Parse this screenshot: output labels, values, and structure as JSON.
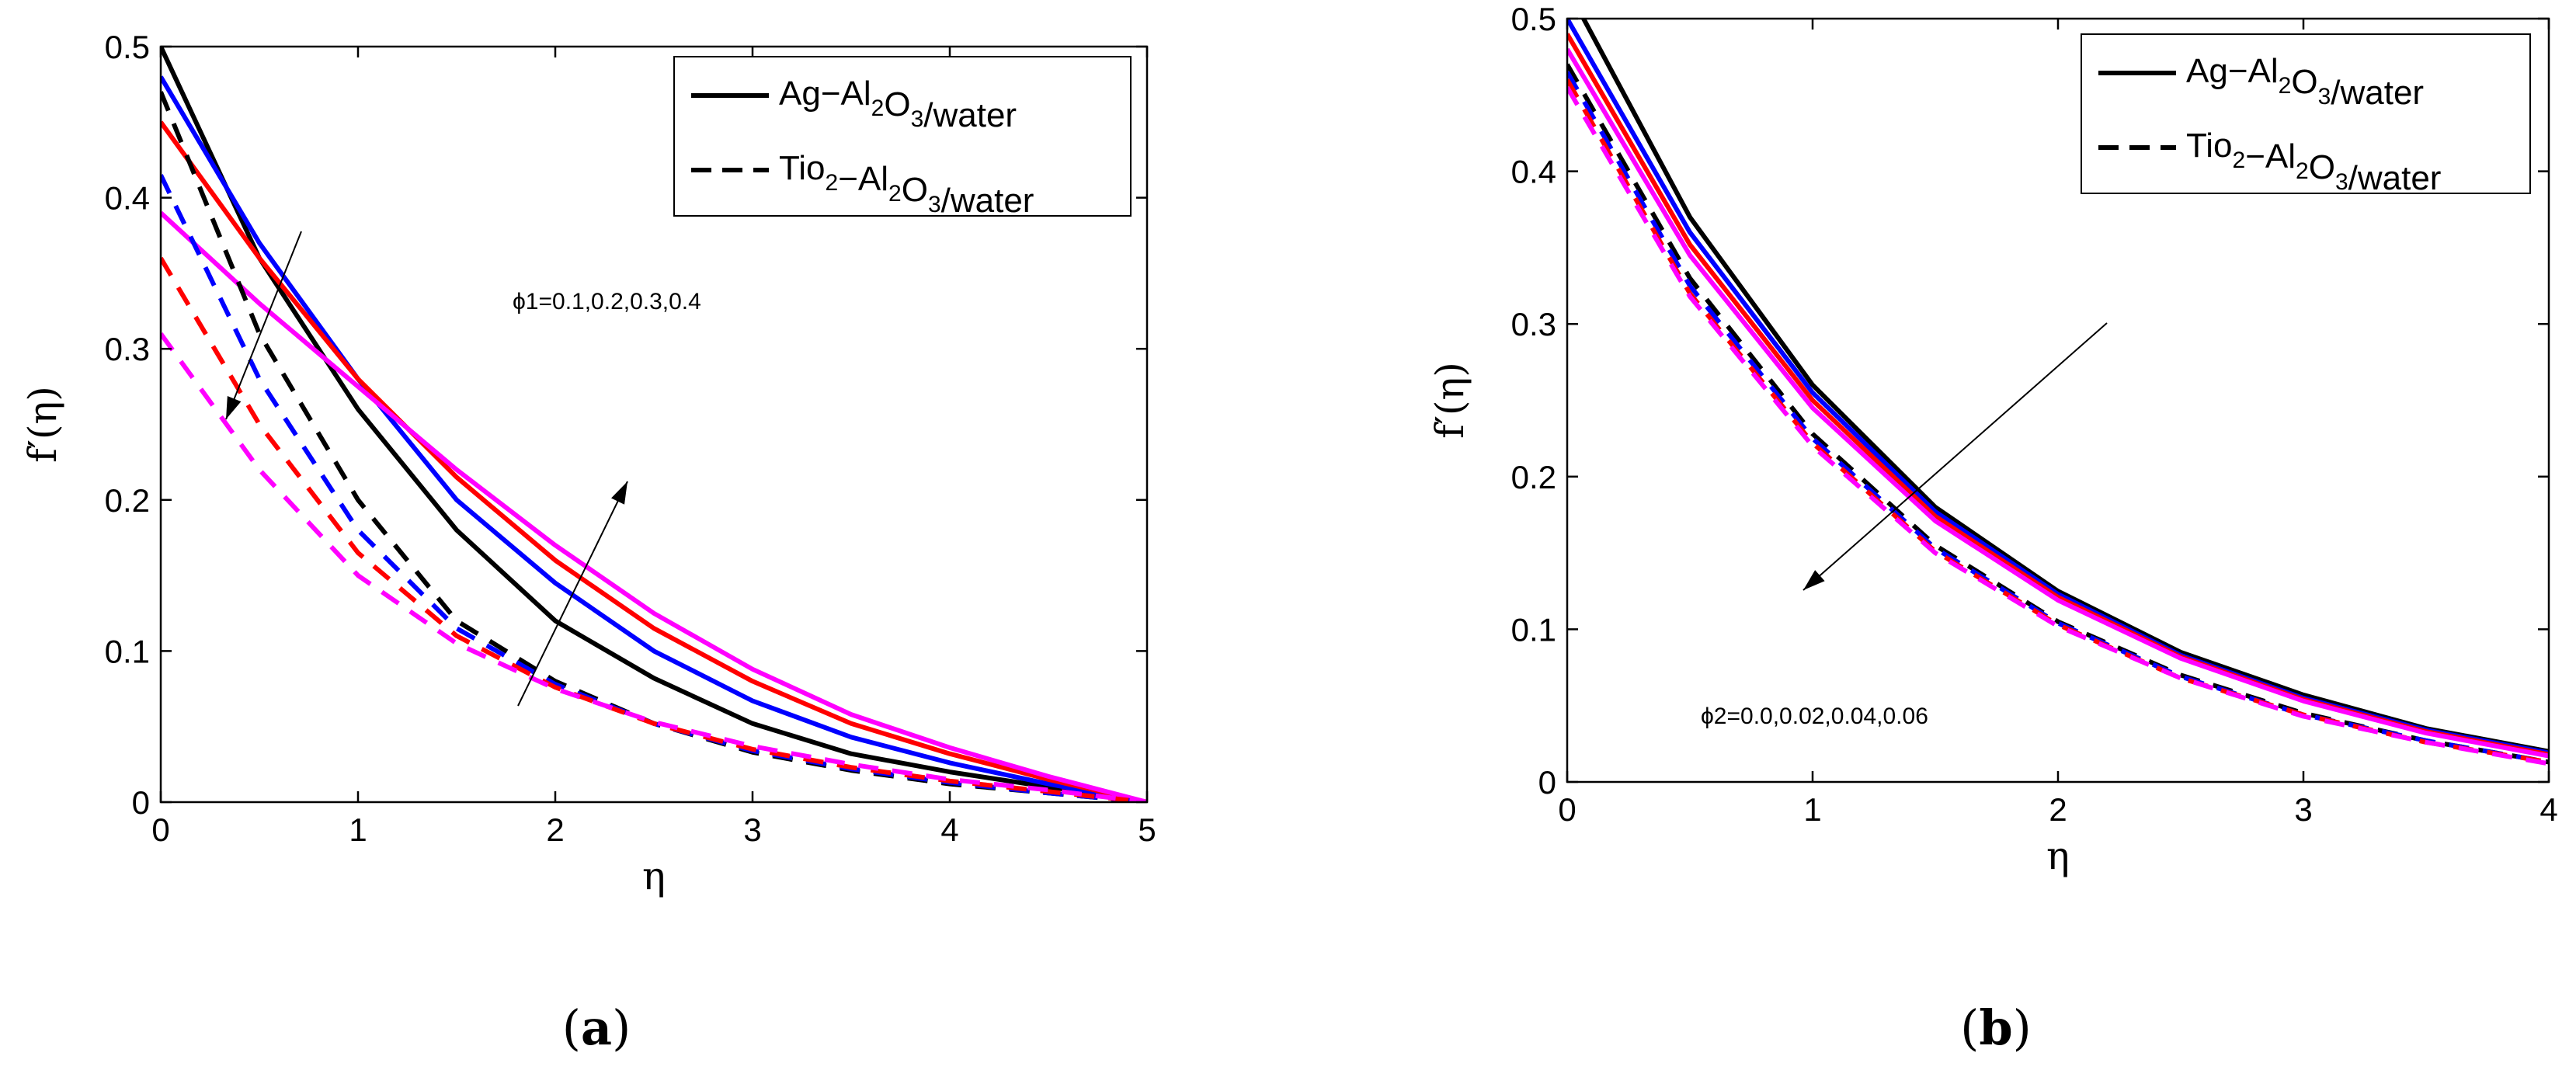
{
  "chart_data": [
    {
      "type": "line",
      "panel_label": "(a)",
      "xlabel": "η",
      "ylabel": "f′(η)",
      "xlim": [
        0,
        5
      ],
      "ylim": [
        0,
        0.5
      ],
      "xticks": [
        "0",
        "1",
        "2",
        "3",
        "4",
        "5"
      ],
      "yticks": [
        "0",
        "0.1",
        "0.2",
        "0.3",
        "0.4",
        "0.5"
      ],
      "legend": {
        "placement": "top-right",
        "entries": [
          {
            "style": "solid",
            "text": "Ag−Al",
            "sub1": "2",
            "mid": "O",
            "sub2": "3",
            "tail": "/water"
          },
          {
            "style": "dashed",
            "text": "Tio",
            "sub0": "2",
            "mid0": "−Al",
            "sub1": "2",
            "mid": "O",
            "sub2": "3",
            "tail": "/water"
          }
        ]
      },
      "annotations": [
        {
          "text": "ϕ1=0.1,0.2,0.3,0.4"
        }
      ],
      "series": [
        {
          "name": "Ag−Al2O3/water ϕ1=0.1",
          "color": "#000000",
          "style": "solid",
          "x": [
            0,
            0.5,
            1,
            1.5,
            2,
            2.5,
            3,
            3.5,
            4,
            4.5,
            5
          ],
          "y": [
            0.5,
            0.36,
            0.26,
            0.18,
            0.12,
            0.082,
            0.052,
            0.032,
            0.02,
            0.01,
            0
          ]
        },
        {
          "name": "Ag−Al2O3/water ϕ1=0.2",
          "color": "#0000ff",
          "style": "solid",
          "x": [
            0,
            0.5,
            1,
            1.5,
            2,
            2.5,
            3,
            3.5,
            4,
            4.5,
            5
          ],
          "y": [
            0.48,
            0.37,
            0.28,
            0.2,
            0.145,
            0.1,
            0.067,
            0.043,
            0.026,
            0.012,
            0
          ]
        },
        {
          "name": "Ag−Al2O3/water ϕ1=0.3",
          "color": "#ff0000",
          "style": "solid",
          "x": [
            0,
            0.5,
            1,
            1.5,
            2,
            2.5,
            3,
            3.5,
            4,
            4.5,
            5
          ],
          "y": [
            0.45,
            0.36,
            0.28,
            0.215,
            0.16,
            0.115,
            0.08,
            0.052,
            0.032,
            0.015,
            0
          ]
        },
        {
          "name": "Ag−Al2O3/water ϕ1=0.4",
          "color": "#ff00ff",
          "style": "solid",
          "x": [
            0,
            0.5,
            1,
            1.5,
            2,
            2.5,
            3,
            3.5,
            4,
            4.5,
            5
          ],
          "y": [
            0.39,
            0.33,
            0.275,
            0.22,
            0.17,
            0.125,
            0.088,
            0.058,
            0.036,
            0.017,
            0
          ]
        },
        {
          "name": "Tio2−Al2O3/water ϕ1=0.1",
          "color": "#000000",
          "style": "dashed",
          "x": [
            0,
            0.5,
            1,
            1.5,
            2,
            2.5,
            3,
            3.5,
            4,
            4.5,
            5
          ],
          "y": [
            0.47,
            0.31,
            0.2,
            0.12,
            0.08,
            0.052,
            0.033,
            0.021,
            0.012,
            0.006,
            0
          ]
        },
        {
          "name": "Tio2−Al2O3/water ϕ1=0.2",
          "color": "#0000ff",
          "style": "dashed",
          "x": [
            0,
            0.5,
            1,
            1.5,
            2,
            2.5,
            3,
            3.5,
            4,
            4.5,
            5
          ],
          "y": [
            0.415,
            0.28,
            0.18,
            0.115,
            0.078,
            0.052,
            0.034,
            0.022,
            0.013,
            0.006,
            0
          ]
        },
        {
          "name": "Tio2−Al2O3/water ϕ1=0.3",
          "color": "#ff0000",
          "style": "dashed",
          "x": [
            0,
            0.5,
            1,
            1.5,
            2,
            2.5,
            3,
            3.5,
            4,
            4.5,
            5
          ],
          "y": [
            0.36,
            0.25,
            0.165,
            0.11,
            0.076,
            0.052,
            0.035,
            0.023,
            0.014,
            0.007,
            0
          ]
        },
        {
          "name": "Tio2−Al2O3/water ϕ1=0.4",
          "color": "#ff00ff",
          "style": "dashed",
          "x": [
            0,
            0.5,
            1,
            1.5,
            2,
            2.5,
            3,
            3.5,
            4,
            4.5,
            5
          ],
          "y": [
            0.31,
            0.22,
            0.15,
            0.105,
            0.075,
            0.053,
            0.037,
            0.025,
            0.015,
            0.008,
            0
          ]
        }
      ]
    },
    {
      "type": "line",
      "panel_label": "(b)",
      "xlabel": "η",
      "ylabel": "f′(η)",
      "xlim": [
        0,
        4
      ],
      "ylim": [
        0,
        0.5
      ],
      "xticks": [
        "0",
        "1",
        "2",
        "3",
        "4"
      ],
      "yticks": [
        "0",
        "0.1",
        "0.2",
        "0.3",
        "0.4",
        "0.5"
      ],
      "legend": {
        "placement": "top-right",
        "entries": [
          {
            "style": "solid",
            "text": "Ag−Al",
            "sub1": "2",
            "mid": "O",
            "sub2": "3",
            "tail": "/water"
          },
          {
            "style": "dashed",
            "text": "Tio",
            "sub0": "2",
            "mid0": "−Al",
            "sub1": "2",
            "mid": "O",
            "sub2": "3",
            "tail": "/water"
          }
        ]
      },
      "annotations": [
        {
          "text": "ϕ2=0.0,0.02,0.04,0.06"
        }
      ],
      "series": [
        {
          "name": "Ag−Al2O3/water ϕ2=0.0",
          "color": "#000000",
          "style": "solid",
          "x": [
            0,
            0.5,
            1,
            1.5,
            2,
            2.5,
            3,
            3.5,
            4
          ],
          "y": [
            0.52,
            0.37,
            0.26,
            0.18,
            0.125,
            0.085,
            0.057,
            0.035,
            0.02
          ]
        },
        {
          "name": "Ag−Al2O3/water ϕ2=0.02",
          "color": "#0000ff",
          "style": "solid",
          "x": [
            0,
            0.5,
            1,
            1.5,
            2,
            2.5,
            3,
            3.5,
            4
          ],
          "y": [
            0.5,
            0.36,
            0.255,
            0.177,
            0.123,
            0.083,
            0.055,
            0.034,
            0.019
          ]
        },
        {
          "name": "Ag−Al2O3/water ϕ2=0.04",
          "color": "#ff0000",
          "style": "solid",
          "x": [
            0,
            0.5,
            1,
            1.5,
            2,
            2.5,
            3,
            3.5,
            4
          ],
          "y": [
            0.49,
            0.352,
            0.25,
            0.174,
            0.121,
            0.082,
            0.054,
            0.033,
            0.018
          ]
        },
        {
          "name": "Ag−Al2O3/water ϕ2=0.06",
          "color": "#ff00ff",
          "style": "solid",
          "x": [
            0,
            0.5,
            1,
            1.5,
            2,
            2.5,
            3,
            3.5,
            4
          ],
          "y": [
            0.48,
            0.345,
            0.245,
            0.171,
            0.119,
            0.081,
            0.053,
            0.032,
            0.017
          ]
        },
        {
          "name": "Tio2−Al2O3/water ϕ2=0.0",
          "color": "#000000",
          "style": "dashed",
          "x": [
            0,
            0.5,
            1,
            1.5,
            2,
            2.5,
            3,
            3.5,
            4
          ],
          "y": [
            0.47,
            0.33,
            0.228,
            0.155,
            0.105,
            0.07,
            0.045,
            0.027,
            0.013
          ]
        },
        {
          "name": "Tio2−Al2O3/water ϕ2=0.02",
          "color": "#0000ff",
          "style": "dashed",
          "x": [
            0,
            0.5,
            1,
            1.5,
            2,
            2.5,
            3,
            3.5,
            4
          ],
          "y": [
            0.465,
            0.325,
            0.225,
            0.153,
            0.104,
            0.069,
            0.044,
            0.027,
            0.013
          ]
        },
        {
          "name": "Tio2−Al2O3/water ϕ2=0.04",
          "color": "#ff0000",
          "style": "dashed",
          "x": [
            0,
            0.5,
            1,
            1.5,
            2,
            2.5,
            3,
            3.5,
            4
          ],
          "y": [
            0.46,
            0.32,
            0.222,
            0.151,
            0.103,
            0.068,
            0.044,
            0.026,
            0.013
          ]
        },
        {
          "name": "Tio2−Al2O3/water ϕ2=0.06",
          "color": "#ff00ff",
          "style": "dashed",
          "x": [
            0,
            0.5,
            1,
            1.5,
            2,
            2.5,
            3,
            3.5,
            4
          ],
          "y": [
            0.455,
            0.318,
            0.22,
            0.15,
            0.102,
            0.068,
            0.043,
            0.026,
            0.012
          ]
        }
      ]
    }
  ]
}
